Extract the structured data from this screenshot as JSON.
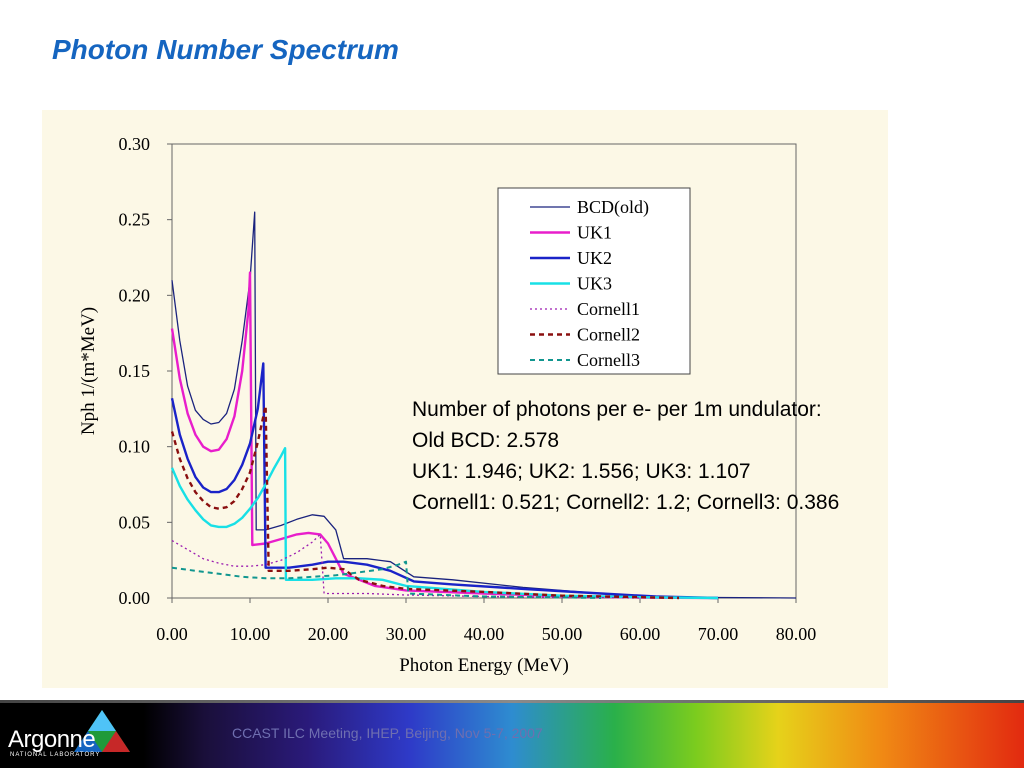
{
  "slide": {
    "title": "Photon Number Spectrum"
  },
  "note": {
    "lines": [
      "Number of photons per e- per 1m undulator:",
      "Old BCD: 2.578",
      "UK1: 1.946; UK2: 1.556; UK3: 1.107",
      "Cornell1: 0.521; Cornell2: 1.2; Cornell3: 0.386"
    ]
  },
  "footer": {
    "text": "CCAST ILC Meeting, IHEP, Beijing, Nov 5-7, 2007",
    "logo_name": "Argonne",
    "logo_sub": "NATIONAL LABORATORY",
    "logo_icon": "argonne-triangle-logo"
  },
  "chart_data": {
    "type": "line",
    "title": "",
    "xlabel": "Photon Energy (MeV)",
    "ylabel": "Nph 1/(m*MeV)",
    "xlim": [
      0,
      80
    ],
    "ylim": [
      0,
      0.3
    ],
    "x_ticks": [
      "0.00",
      "10.00",
      "20.00",
      "30.00",
      "40.00",
      "50.00",
      "60.00",
      "70.00",
      "80.00"
    ],
    "y_ticks": [
      "0.00",
      "0.05",
      "0.10",
      "0.15",
      "0.20",
      "0.25",
      "0.30"
    ],
    "grid": false,
    "legend_position": "top-right",
    "series": [
      {
        "name": "BCD(old)",
        "color": "#1a237e",
        "dash": "solid",
        "width": 1.3,
        "points": [
          [
            0,
            0.21
          ],
          [
            1,
            0.17
          ],
          [
            2,
            0.14
          ],
          [
            3,
            0.124
          ],
          [
            4,
            0.118
          ],
          [
            5,
            0.115
          ],
          [
            6,
            0.116
          ],
          [
            7,
            0.122
          ],
          [
            8,
            0.138
          ],
          [
            9,
            0.17
          ],
          [
            10,
            0.21
          ],
          [
            10.6,
            0.255
          ],
          [
            10.8,
            0.045
          ],
          [
            12,
            0.045
          ],
          [
            14,
            0.048
          ],
          [
            16,
            0.052
          ],
          [
            18,
            0.055
          ],
          [
            19.5,
            0.054
          ],
          [
            21,
            0.045
          ],
          [
            22,
            0.026
          ],
          [
            25,
            0.026
          ],
          [
            28,
            0.024
          ],
          [
            31,
            0.014
          ],
          [
            36,
            0.012
          ],
          [
            45,
            0.007
          ],
          [
            55,
            0.003
          ],
          [
            62,
            0.001
          ],
          [
            70,
            0.0003
          ],
          [
            80,
            0
          ]
        ]
      },
      {
        "name": "UK1",
        "color": "#e81ecb",
        "dash": "solid",
        "width": 2.4,
        "points": [
          [
            0,
            0.178
          ],
          [
            1,
            0.145
          ],
          [
            2,
            0.122
          ],
          [
            3,
            0.108
          ],
          [
            4,
            0.1
          ],
          [
            5,
            0.097
          ],
          [
            6,
            0.098
          ],
          [
            7,
            0.105
          ],
          [
            8,
            0.12
          ],
          [
            9,
            0.15
          ],
          [
            9.8,
            0.19
          ],
          [
            10,
            0.215
          ],
          [
            10.3,
            0.035
          ],
          [
            12,
            0.036
          ],
          [
            14,
            0.039
          ],
          [
            16,
            0.042
          ],
          [
            17.5,
            0.043
          ],
          [
            19,
            0.042
          ],
          [
            20,
            0.036
          ],
          [
            21,
            0.026
          ],
          [
            22,
            0.016
          ],
          [
            24,
            0.012
          ],
          [
            26,
            0.008
          ],
          [
            30,
            0.005
          ],
          [
            40,
            0.003
          ],
          [
            50,
            0.0012
          ],
          [
            60,
            0.0003
          ],
          [
            70,
            0
          ]
        ]
      },
      {
        "name": "UK2",
        "color": "#1a23c8",
        "dash": "solid",
        "width": 2.4,
        "points": [
          [
            0,
            0.132
          ],
          [
            1,
            0.108
          ],
          [
            2,
            0.092
          ],
          [
            3,
            0.08
          ],
          [
            4,
            0.073
          ],
          [
            5,
            0.07
          ],
          [
            6,
            0.07
          ],
          [
            7,
            0.072
          ],
          [
            8,
            0.078
          ],
          [
            9,
            0.088
          ],
          [
            10,
            0.102
          ],
          [
            11,
            0.125
          ],
          [
            11.7,
            0.155
          ],
          [
            12,
            0.02
          ],
          [
            15,
            0.02
          ],
          [
            18,
            0.022
          ],
          [
            20,
            0.024
          ],
          [
            22,
            0.024
          ],
          [
            25,
            0.022
          ],
          [
            28,
            0.018
          ],
          [
            31,
            0.011
          ],
          [
            36,
            0.009
          ],
          [
            45,
            0.006
          ],
          [
            55,
            0.003
          ],
          [
            62,
            0.001
          ],
          [
            70,
            0
          ]
        ]
      },
      {
        "name": "UK3",
        "color": "#18e0e6",
        "dash": "solid",
        "width": 2.4,
        "points": [
          [
            0,
            0.086
          ],
          [
            1,
            0.074
          ],
          [
            2,
            0.065
          ],
          [
            3,
            0.058
          ],
          [
            4,
            0.052
          ],
          [
            5,
            0.048
          ],
          [
            6,
            0.047
          ],
          [
            7,
            0.047
          ],
          [
            8,
            0.049
          ],
          [
            9,
            0.053
          ],
          [
            10,
            0.059
          ],
          [
            11,
            0.066
          ],
          [
            12,
            0.075
          ],
          [
            13,
            0.085
          ],
          [
            14,
            0.094
          ],
          [
            14.5,
            0.099
          ],
          [
            14.6,
            0.012
          ],
          [
            18,
            0.012
          ],
          [
            21,
            0.013
          ],
          [
            24,
            0.013
          ],
          [
            27,
            0.012
          ],
          [
            30,
            0.008
          ],
          [
            40,
            0.004
          ],
          [
            50,
            0.0015
          ],
          [
            60,
            0.0005
          ],
          [
            70,
            0
          ]
        ]
      },
      {
        "name": "Cornell1",
        "color": "#9c1cb0",
        "dash": "2,3",
        "width": 1.3,
        "points": [
          [
            0,
            0.038
          ],
          [
            2,
            0.032
          ],
          [
            4,
            0.026
          ],
          [
            6,
            0.023
          ],
          [
            8,
            0.021
          ],
          [
            10,
            0.021
          ],
          [
            12,
            0.022
          ],
          [
            14,
            0.025
          ],
          [
            16,
            0.03
          ],
          [
            18,
            0.037
          ],
          [
            19,
            0.042
          ],
          [
            19.5,
            0.003
          ],
          [
            25,
            0.003
          ],
          [
            30,
            0.002
          ],
          [
            40,
            0.001
          ],
          [
            50,
            0.0004
          ],
          [
            60,
            0
          ]
        ]
      },
      {
        "name": "Cornell2",
        "color": "#8a0f0f",
        "dash": "5,4",
        "width": 2.4,
        "points": [
          [
            0,
            0.11
          ],
          [
            1,
            0.092
          ],
          [
            2,
            0.079
          ],
          [
            3,
            0.07
          ],
          [
            4,
            0.064
          ],
          [
            5,
            0.06
          ],
          [
            6,
            0.059
          ],
          [
            7,
            0.06
          ],
          [
            8,
            0.064
          ],
          [
            9,
            0.072
          ],
          [
            10,
            0.083
          ],
          [
            11,
            0.103
          ],
          [
            12,
            0.127
          ],
          [
            12.4,
            0.018
          ],
          [
            15,
            0.018
          ],
          [
            18,
            0.019
          ],
          [
            20,
            0.02
          ],
          [
            22,
            0.019
          ],
          [
            24,
            0.012
          ],
          [
            27,
            0.008
          ],
          [
            30,
            0.006
          ],
          [
            40,
            0.004
          ],
          [
            50,
            0.0015
          ],
          [
            60,
            0.0005
          ],
          [
            65,
            0
          ]
        ]
      },
      {
        "name": "Cornell3",
        "color": "#11968f",
        "dash": "5,4",
        "width": 2.0,
        "points": [
          [
            0,
            0.02
          ],
          [
            3,
            0.018
          ],
          [
            6,
            0.016
          ],
          [
            9,
            0.014
          ],
          [
            12,
            0.013
          ],
          [
            15,
            0.013
          ],
          [
            18,
            0.014
          ],
          [
            21,
            0.015
          ],
          [
            24,
            0.017
          ],
          [
            27,
            0.019
          ],
          [
            29,
            0.022
          ],
          [
            30,
            0.024
          ],
          [
            30.3,
            0.003
          ],
          [
            35,
            0.002
          ],
          [
            40,
            0.001
          ],
          [
            50,
            0.0004
          ],
          [
            55,
            0
          ]
        ]
      }
    ]
  }
}
